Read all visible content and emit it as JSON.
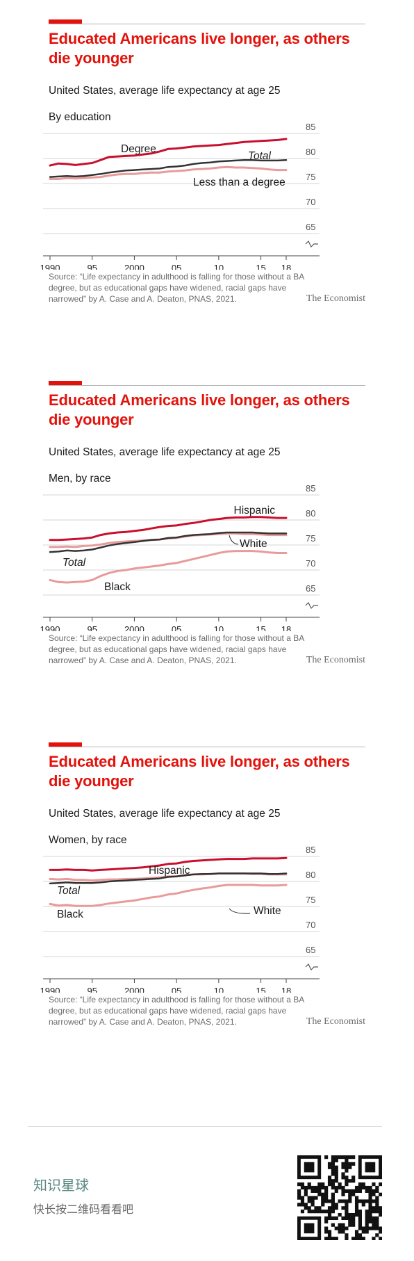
{
  "panels": [
    {
      "title": "Educated Americans live longer, as others die younger",
      "subtitle": "United States, average life expectancy at age 25",
      "group_label": "By education",
      "source": "Source: “Life expectancy in adulthood is falling for those without a BA degree, but as educational gaps have widened, racial gaps have narrowed” by A. Case and A. Deaton, PNAS, 2021.",
      "brand": "The Economist"
    },
    {
      "title": "Educated Americans live longer, as others die younger",
      "subtitle": "United States, average life expectancy at age 25",
      "group_label": "Men, by race",
      "source": "Source: “Life expectancy in adulthood is falling for those without a BA degree, but as educational gaps have widened, racial gaps have narrowed” by A. Case and A. Deaton, PNAS, 2021.",
      "brand": "The Economist"
    },
    {
      "title": "Educated Americans live longer, as others die younger",
      "subtitle": "United States, average life expectancy at age 25",
      "group_label": "Women, by race",
      "source": "Source: “Life expectancy in adulthood is falling for those without a BA degree, but as educational gaps have widened, racial gaps have narrowed” by A. Case and A. Deaton, PNAS, 2021.",
      "brand": "The Economist"
    }
  ],
  "chart_data": [
    {
      "type": "line",
      "title": "Educated Americans live longer, as others die younger",
      "subtitle": "United States, average life expectancy at age 25",
      "group": "By education",
      "x": [
        1990,
        1991,
        1992,
        1993,
        1994,
        1995,
        1996,
        1997,
        1998,
        1999,
        2000,
        2001,
        2002,
        2003,
        2004,
        2005,
        2006,
        2007,
        2008,
        2009,
        2010,
        2011,
        2012,
        2013,
        2014,
        2015,
        2016,
        2017,
        2018
      ],
      "x_tick_labels": [
        "1990",
        "95",
        "2000",
        "05",
        "10",
        "15",
        "18"
      ],
      "x_tick_values": [
        1990,
        1995,
        2000,
        2005,
        2010,
        2015,
        2018
      ],
      "y_ticks": [
        65,
        70,
        75,
        80,
        85
      ],
      "ylim": [
        63,
        85
      ],
      "y_axis_break": true,
      "grid": true,
      "series": [
        {
          "name": "Degree",
          "color": "#c8102e",
          "width": 3,
          "values": [
            78.6,
            79.0,
            78.9,
            78.7,
            78.9,
            79.1,
            79.7,
            80.3,
            80.4,
            80.5,
            80.6,
            80.8,
            81.0,
            81.4,
            81.9,
            82.0,
            82.2,
            82.4,
            82.5,
            82.6,
            82.7,
            82.9,
            83.1,
            83.3,
            83.4,
            83.5,
            83.6,
            83.7,
            83.9
          ]
        },
        {
          "name": "Total",
          "color": "#333333",
          "width": 2.5,
          "values": [
            76.3,
            76.4,
            76.5,
            76.4,
            76.5,
            76.7,
            76.9,
            77.2,
            77.4,
            77.6,
            77.7,
            77.8,
            77.9,
            78.0,
            78.3,
            78.4,
            78.6,
            78.9,
            79.1,
            79.2,
            79.4,
            79.5,
            79.6,
            79.7,
            79.7,
            79.6,
            79.6,
            79.6,
            79.7
          ]
        },
        {
          "name": "Less than a degree",
          "color": "#e99a9a",
          "width": 3,
          "values": [
            75.9,
            75.9,
            76.1,
            76.0,
            76.1,
            76.2,
            76.3,
            76.6,
            76.8,
            76.9,
            76.9,
            77.1,
            77.2,
            77.2,
            77.4,
            77.5,
            77.6,
            77.8,
            77.9,
            78.0,
            78.2,
            78.3,
            78.2,
            78.2,
            78.1,
            78.0,
            77.8,
            77.7,
            77.7
          ]
        }
      ],
      "annotations": [
        "Degree",
        "Total",
        "Less than a degree"
      ]
    },
    {
      "type": "line",
      "title": "Educated Americans live longer, as others die younger",
      "subtitle": "United States, average life expectancy at age 25",
      "group": "Men, by race",
      "x": [
        1990,
        1991,
        1992,
        1993,
        1994,
        1995,
        1996,
        1997,
        1998,
        1999,
        2000,
        2001,
        2002,
        2003,
        2004,
        2005,
        2006,
        2007,
        2008,
        2009,
        2010,
        2011,
        2012,
        2013,
        2014,
        2015,
        2016,
        2017,
        2018
      ],
      "x_tick_labels": [
        "1990",
        "95",
        "2000",
        "05",
        "10",
        "15",
        "18"
      ],
      "x_tick_values": [
        1990,
        1995,
        2000,
        2005,
        2010,
        2015,
        2018
      ],
      "y_ticks": [
        65,
        70,
        75,
        80,
        85
      ],
      "ylim": [
        63,
        85
      ],
      "y_axis_break": true,
      "grid": true,
      "series": [
        {
          "name": "Hispanic",
          "color": "#c8102e",
          "width": 3,
          "values": [
            76.0,
            76.0,
            76.1,
            76.2,
            76.3,
            76.5,
            77.0,
            77.3,
            77.5,
            77.6,
            77.8,
            78.0,
            78.3,
            78.6,
            78.8,
            78.9,
            79.2,
            79.4,
            79.7,
            80.0,
            80.2,
            80.4,
            80.5,
            80.5,
            80.6,
            80.6,
            80.5,
            80.4,
            80.4
          ]
        },
        {
          "name": "White",
          "color": "#e99a9a",
          "width": 3,
          "values": [
            74.6,
            74.6,
            74.7,
            74.6,
            74.8,
            74.9,
            75.1,
            75.4,
            75.6,
            75.7,
            75.8,
            75.9,
            76.0,
            76.1,
            76.3,
            76.4,
            76.7,
            76.9,
            77.0,
            77.1,
            77.2,
            77.3,
            77.3,
            77.2,
            77.2,
            77.1,
            77.0,
            77.0,
            77.0
          ]
        },
        {
          "name": "Total",
          "color": "#333333",
          "width": 2.5,
          "values": [
            73.6,
            73.7,
            73.9,
            73.8,
            73.9,
            74.1,
            74.5,
            74.9,
            75.2,
            75.4,
            75.6,
            75.8,
            76.0,
            76.1,
            76.4,
            76.5,
            76.8,
            77.0,
            77.1,
            77.2,
            77.4,
            77.5,
            77.5,
            77.5,
            77.5,
            77.4,
            77.3,
            77.3,
            77.3
          ]
        },
        {
          "name": "Black",
          "color": "#e99a9a",
          "width": 3,
          "values": [
            68.0,
            67.6,
            67.5,
            67.6,
            67.7,
            68.0,
            68.8,
            69.4,
            69.8,
            70.0,
            70.3,
            70.5,
            70.7,
            70.9,
            71.2,
            71.4,
            71.8,
            72.2,
            72.6,
            73.0,
            73.4,
            73.7,
            73.8,
            73.8,
            73.8,
            73.7,
            73.5,
            73.4,
            73.4
          ]
        }
      ],
      "annotations": [
        "Hispanic",
        "White",
        "Total",
        "Black"
      ]
    },
    {
      "type": "line",
      "title": "Educated Americans live longer, as others die younger",
      "subtitle": "United States, average life expectancy at age 25",
      "group": "Women, by race",
      "x": [
        1990,
        1991,
        1992,
        1993,
        1994,
        1995,
        1996,
        1997,
        1998,
        1999,
        2000,
        2001,
        2002,
        2003,
        2004,
        2005,
        2006,
        2007,
        2008,
        2009,
        2010,
        2011,
        2012,
        2013,
        2014,
        2015,
        2016,
        2017,
        2018
      ],
      "x_tick_labels": [
        "1990",
        "95",
        "2000",
        "05",
        "10",
        "15",
        "18"
      ],
      "x_tick_values": [
        1990,
        1995,
        2000,
        2005,
        2010,
        2015,
        2018
      ],
      "y_ticks": [
        65,
        70,
        75,
        80,
        85
      ],
      "ylim": [
        63,
        85
      ],
      "y_axis_break": true,
      "grid": true,
      "series": [
        {
          "name": "Hispanic",
          "color": "#c8102e",
          "width": 3,
          "values": [
            82.3,
            82.3,
            82.4,
            82.3,
            82.3,
            82.2,
            82.3,
            82.4,
            82.5,
            82.6,
            82.7,
            82.8,
            83.0,
            83.2,
            83.5,
            83.6,
            83.9,
            84.1,
            84.2,
            84.3,
            84.4,
            84.5,
            84.5,
            84.5,
            84.6,
            84.6,
            84.6,
            84.6,
            84.7
          ]
        },
        {
          "name": "White",
          "color": "#e99a9a",
          "width": 3,
          "values": [
            80.5,
            80.4,
            80.5,
            80.3,
            80.3,
            80.2,
            80.3,
            80.4,
            80.4,
            80.5,
            80.5,
            80.6,
            80.7,
            80.8,
            81.0,
            81.0,
            81.3,
            81.4,
            81.4,
            81.5,
            81.6,
            81.6,
            81.6,
            81.6,
            81.5,
            81.5,
            81.4,
            81.4,
            81.4
          ]
        },
        {
          "name": "Total",
          "color": "#333333",
          "width": 2.5,
          "values": [
            79.6,
            79.7,
            79.8,
            79.7,
            79.7,
            79.7,
            79.8,
            80.0,
            80.1,
            80.2,
            80.3,
            80.4,
            80.5,
            80.6,
            80.9,
            81.0,
            81.2,
            81.4,
            81.5,
            81.5,
            81.6,
            81.6,
            81.6,
            81.6,
            81.6,
            81.6,
            81.5,
            81.5,
            81.6
          ]
        },
        {
          "name": "Black",
          "color": "#e99a9a",
          "width": 3,
          "values": [
            75.5,
            75.2,
            75.3,
            75.1,
            75.1,
            75.1,
            75.3,
            75.6,
            75.8,
            76.0,
            76.2,
            76.5,
            76.8,
            77.0,
            77.4,
            77.6,
            78.0,
            78.3,
            78.6,
            78.8,
            79.1,
            79.3,
            79.3,
            79.3,
            79.3,
            79.2,
            79.2,
            79.2,
            79.3
          ]
        }
      ],
      "annotations": [
        "Hispanic",
        "Total",
        "White",
        "Black"
      ]
    }
  ],
  "footer": {
    "promo_line1": "知识星球",
    "promo_line2": "快长按二维码看看吧"
  },
  "qr": {
    "name": "qr-code"
  }
}
